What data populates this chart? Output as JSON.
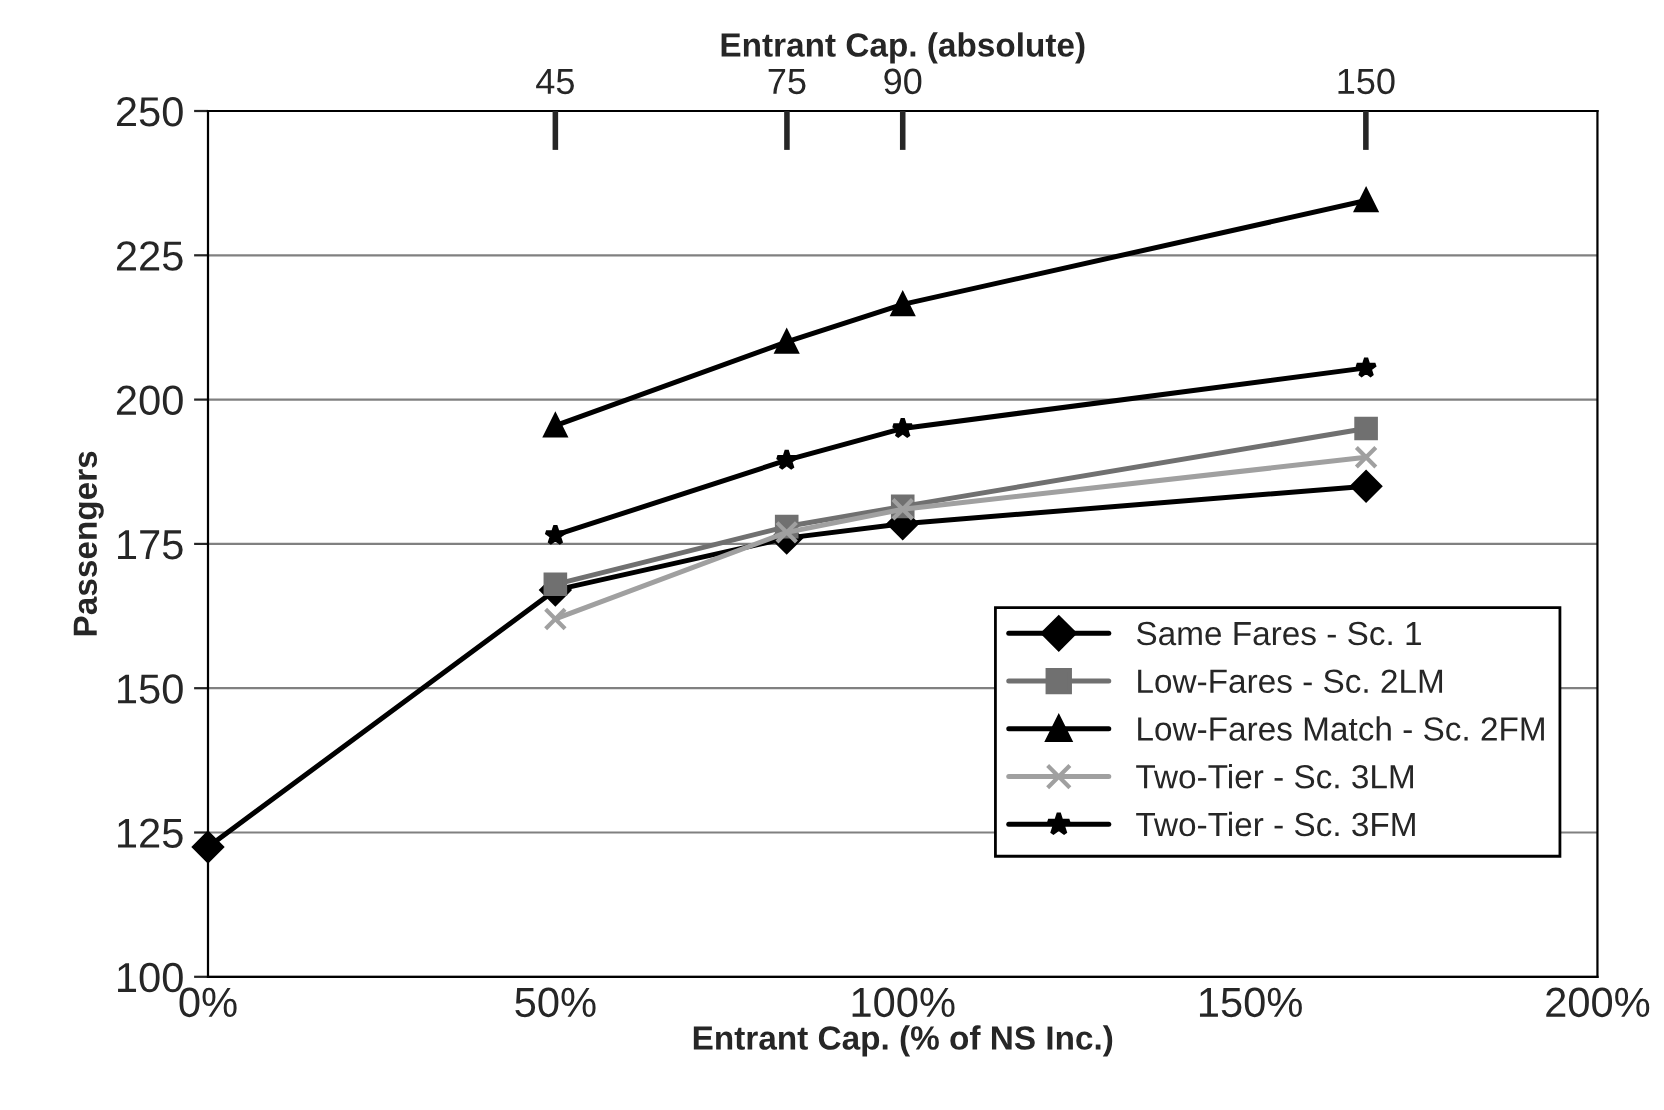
{
  "chart_data": {
    "type": "line",
    "xlabel": "Entrant Cap. (% of NS Inc.)",
    "ylabel": "Passengers",
    "x2label": "Entrant Cap. (absolute)",
    "xlim": [
      0,
      200
    ],
    "xticks": [
      {
        "value": 0,
        "label": "0%"
      },
      {
        "value": 50,
        "label": "50%"
      },
      {
        "value": 100,
        "label": "100%"
      },
      {
        "value": 150,
        "label": "150%"
      },
      {
        "value": 200,
        "label": "200%"
      }
    ],
    "x2lim": [
      0,
      180
    ],
    "x2ticks": [
      45,
      75,
      90,
      150
    ],
    "ylim": [
      100,
      250
    ],
    "yticks": [
      100,
      125,
      150,
      175,
      200,
      225,
      250
    ],
    "grid": "y",
    "legend": "bottom right",
    "series": [
      {
        "name": "Same Fares - Sc. 1",
        "color": "#000000",
        "marker": "diamond",
        "x": [
          0,
          50,
          83.3,
          100,
          166.7
        ],
        "values": [
          122.5,
          167,
          176,
          178.5,
          185
        ]
      },
      {
        "name": "Low-Fares - Sc. 2LM",
        "color": "#707070",
        "marker": "square",
        "x": [
          50,
          83.3,
          100,
          166.7
        ],
        "values": [
          168,
          178,
          181.5,
          195
        ]
      },
      {
        "name": "Low-Fares Match - Sc. 2FM",
        "color": "#000000",
        "marker": "triangle",
        "x": [
          50,
          83.3,
          100,
          166.7
        ],
        "values": [
          195.5,
          210,
          216.5,
          234.5
        ]
      },
      {
        "name": "Two-Tier - Sc. 3LM",
        "color": "#a0a0a0",
        "marker": "cross",
        "x": [
          50,
          83.3,
          100,
          166.7
        ],
        "values": [
          162,
          177,
          181,
          190
        ]
      },
      {
        "name": "Two-Tier - Sc. 3FM",
        "color": "#000000",
        "marker": "star",
        "x": [
          50,
          83.3,
          100,
          166.7
        ],
        "values": [
          176.5,
          189.5,
          195,
          205.5
        ]
      }
    ]
  }
}
